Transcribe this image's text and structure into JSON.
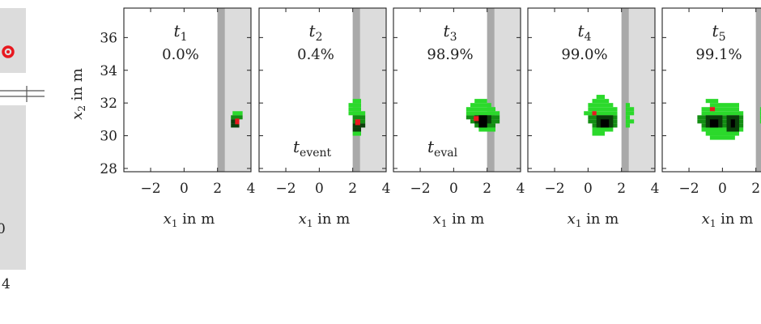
{
  "colors": {
    "occupied": "#2bd92b",
    "occupied_dark": "#0b3f0b",
    "occupied_black": "#000000",
    "ego": "#e8181f",
    "shade": "#dcdcdc",
    "shade_edge": "#a9a9a9",
    "left_marker": "#e8181f"
  },
  "left_fragment": {
    "tick_label_bottom": "4",
    "tick_label_side": "0"
  },
  "chart_data": [
    {
      "type": "heatmap",
      "time_label": "t",
      "time_sub": "1",
      "probability": "0.0%",
      "annotation": "",
      "annotation_sub": "",
      "xlim": [
        -3.6,
        4.0
      ],
      "ylim": [
        27.8,
        37.8
      ],
      "xticks": [
        "−2",
        "0",
        "2",
        "4"
      ],
      "xtick_values": [
        -2,
        0,
        2,
        4
      ],
      "yticks": [
        "28",
        "30",
        "32",
        "34",
        "36"
      ],
      "ytick_values": [
        28,
        30,
        32,
        34,
        36
      ],
      "xlabel": "x",
      "xlabel_sub": "1",
      "xlabel_unit": " in m",
      "ylabel": "x",
      "ylabel_sub": "2",
      "ylabel_unit": " in m",
      "shade_x": [
        2.0,
        4.0
      ],
      "grid_cell": 0.25,
      "occupancy": [
        {
          "x": 2.9,
          "y": 31.25,
          "w": 0.6,
          "h": 0.25,
          "level": 0
        },
        {
          "x": 2.8,
          "y": 31.0,
          "w": 0.7,
          "h": 0.25,
          "level": 1
        },
        {
          "x": 2.8,
          "y": 30.75,
          "w": 0.5,
          "h": 0.25,
          "level": 2
        },
        {
          "x": 2.8,
          "y": 30.5,
          "w": 0.5,
          "h": 0.25,
          "level": 2
        }
      ],
      "ego": [
        {
          "x": 3.05,
          "y": 30.7,
          "w": 0.25,
          "h": 0.35
        }
      ]
    },
    {
      "type": "heatmap",
      "time_label": "t",
      "time_sub": "2",
      "probability": "0.4%",
      "annotation": "t",
      "annotation_sub": "event",
      "xlim": [
        -3.6,
        4.0
      ],
      "ylim": [
        27.8,
        37.8
      ],
      "xticks": [
        "−2",
        "0",
        "2",
        "4"
      ],
      "xtick_values": [
        -2,
        0,
        2,
        4
      ],
      "yticks": [],
      "ytick_values": [
        28,
        30,
        32,
        34,
        36
      ],
      "xlabel": "x",
      "xlabel_sub": "1",
      "xlabel_unit": " in m",
      "shade_x": [
        2.0,
        4.0
      ],
      "grid_cell": 0.25,
      "occupancy": [
        {
          "x": 2.0,
          "y": 32.0,
          "w": 0.5,
          "h": 0.25,
          "level": 0
        },
        {
          "x": 1.75,
          "y": 31.75,
          "w": 0.75,
          "h": 0.25,
          "level": 0
        },
        {
          "x": 1.75,
          "y": 31.5,
          "w": 0.75,
          "h": 0.25,
          "level": 0
        },
        {
          "x": 1.75,
          "y": 31.25,
          "w": 1.0,
          "h": 0.25,
          "level": 0
        },
        {
          "x": 2.0,
          "y": 31.0,
          "w": 0.75,
          "h": 0.25,
          "level": 1
        },
        {
          "x": 2.0,
          "y": 30.75,
          "w": 0.75,
          "h": 0.25,
          "level": 1
        },
        {
          "x": 2.0,
          "y": 30.5,
          "w": 0.75,
          "h": 0.25,
          "level": 2
        },
        {
          "x": 2.0,
          "y": 30.25,
          "w": 0.5,
          "h": 0.25,
          "level": 2
        },
        {
          "x": 2.0,
          "y": 30.0,
          "w": 0.5,
          "h": 0.25,
          "level": 0
        }
      ],
      "ego": [
        {
          "x": 2.15,
          "y": 30.65,
          "w": 0.3,
          "h": 0.35
        }
      ]
    },
    {
      "type": "heatmap",
      "time_label": "t",
      "time_sub": "3",
      "probability": "98.9%",
      "annotation": "t",
      "annotation_sub": "eval",
      "xlim": [
        -3.6,
        4.0
      ],
      "ylim": [
        27.8,
        37.8
      ],
      "xticks": [
        "−2",
        "0",
        "2",
        "4"
      ],
      "xtick_values": [
        -2,
        0,
        2,
        4
      ],
      "yticks": [],
      "ytick_values": [
        28,
        30,
        32,
        34,
        36
      ],
      "xlabel": "x",
      "xlabel_sub": "1",
      "xlabel_unit": " in m",
      "shade_x": [
        2.0,
        4.0
      ],
      "grid_cell": 0.25,
      "occupancy": [
        {
          "x": 1.25,
          "y": 32.0,
          "w": 0.75,
          "h": 0.25,
          "level": 0
        },
        {
          "x": 1.0,
          "y": 31.75,
          "w": 1.25,
          "h": 0.25,
          "level": 0
        },
        {
          "x": 0.75,
          "y": 31.5,
          "w": 1.75,
          "h": 0.25,
          "level": 0
        },
        {
          "x": 0.75,
          "y": 31.25,
          "w": 2.0,
          "h": 0.25,
          "level": 0
        },
        {
          "x": 0.75,
          "y": 31.0,
          "w": 2.0,
          "h": 0.25,
          "level": 1
        },
        {
          "x": 1.0,
          "y": 30.75,
          "w": 1.75,
          "h": 0.25,
          "level": 1
        },
        {
          "x": 1.25,
          "y": 30.5,
          "w": 1.25,
          "h": 0.25,
          "level": 1
        },
        {
          "x": 1.5,
          "y": 30.25,
          "w": 1.0,
          "h": 0.25,
          "level": 0
        },
        {
          "x": 1.25,
          "y": 30.75,
          "w": 1.0,
          "h": 0.5,
          "level": 2
        },
        {
          "x": 1.5,
          "y": 30.5,
          "w": 0.5,
          "h": 0.75,
          "level": 3
        }
      ],
      "ego": [
        {
          "x": 1.2,
          "y": 30.9,
          "w": 0.3,
          "h": 0.3
        }
      ]
    },
    {
      "type": "heatmap",
      "time_label": "t",
      "time_sub": "4",
      "probability": "99.0%",
      "annotation": "",
      "annotation_sub": "",
      "xlim": [
        -3.6,
        4.0
      ],
      "ylim": [
        27.8,
        37.8
      ],
      "xticks": [
        "−2",
        "0",
        "2",
        "4"
      ],
      "xtick_values": [
        -2,
        0,
        2,
        4
      ],
      "yticks": [],
      "ytick_values": [
        28,
        30,
        32,
        34,
        36
      ],
      "xlabel": "x",
      "xlabel_sub": "1",
      "xlabel_unit": " in m",
      "shade_x": [
        2.0,
        4.0
      ],
      "grid_cell": 0.25,
      "occupancy": [
        {
          "x": 0.5,
          "y": 32.25,
          "w": 0.5,
          "h": 0.25,
          "level": 0
        },
        {
          "x": 0.25,
          "y": 32.0,
          "w": 1.0,
          "h": 0.25,
          "level": 0
        },
        {
          "x": 0.0,
          "y": 31.75,
          "w": 1.5,
          "h": 0.25,
          "level": 0
        },
        {
          "x": 0.0,
          "y": 31.5,
          "w": 1.75,
          "h": 0.25,
          "level": 0
        },
        {
          "x": -0.25,
          "y": 31.25,
          "w": 2.0,
          "h": 0.25,
          "level": 0
        },
        {
          "x": 0.0,
          "y": 31.0,
          "w": 1.75,
          "h": 0.25,
          "level": 1
        },
        {
          "x": 0.0,
          "y": 30.75,
          "w": 1.75,
          "h": 0.25,
          "level": 1
        },
        {
          "x": 0.25,
          "y": 30.5,
          "w": 1.5,
          "h": 0.25,
          "level": 1
        },
        {
          "x": 0.25,
          "y": 30.25,
          "w": 1.25,
          "h": 0.25,
          "level": 0
        },
        {
          "x": 0.25,
          "y": 30.0,
          "w": 0.75,
          "h": 0.25,
          "level": 0
        },
        {
          "x": 0.5,
          "y": 30.5,
          "w": 1.0,
          "h": 0.75,
          "level": 2
        },
        {
          "x": 0.75,
          "y": 30.5,
          "w": 0.5,
          "h": 0.5,
          "level": 3
        },
        {
          "x": 2.25,
          "y": 31.75,
          "w": 0.25,
          "h": 0.25,
          "level": 0
        },
        {
          "x": 2.25,
          "y": 31.5,
          "w": 0.5,
          "h": 0.25,
          "level": 0
        },
        {
          "x": 2.25,
          "y": 31.25,
          "w": 0.5,
          "h": 0.25,
          "level": 0
        },
        {
          "x": 2.25,
          "y": 31.0,
          "w": 0.25,
          "h": 0.25,
          "level": 0
        },
        {
          "x": 2.25,
          "y": 30.75,
          "w": 0.5,
          "h": 0.25,
          "level": 0
        },
        {
          "x": 2.25,
          "y": 30.5,
          "w": 0.25,
          "h": 0.25,
          "level": 0
        }
      ],
      "ego": [
        {
          "x": 0.25,
          "y": 31.25,
          "w": 0.25,
          "h": 0.25
        }
      ]
    },
    {
      "type": "heatmap",
      "time_label": "t",
      "time_sub": "5",
      "probability": "99.1%",
      "annotation": "",
      "annotation_sub": "",
      "xlim": [
        -3.6,
        4.0
      ],
      "ylim": [
        27.8,
        37.8
      ],
      "xticks": [
        "−2",
        "0",
        "2"
      ],
      "xtick_values": [
        -2,
        0,
        2
      ],
      "yticks": [],
      "ytick_values": [
        28,
        30,
        32,
        34,
        36
      ],
      "xlabel": "x",
      "xlabel_sub": "1",
      "xlabel_unit": " in m",
      "shade_x": [
        2.0,
        4.0
      ],
      "grid_cell": 0.25,
      "occupancy": [
        {
          "x": -1.0,
          "y": 32.0,
          "w": 0.75,
          "h": 0.25,
          "level": 0
        },
        {
          "x": -0.75,
          "y": 31.75,
          "w": 1.75,
          "h": 0.25,
          "level": 0
        },
        {
          "x": -1.25,
          "y": 31.5,
          "w": 2.25,
          "h": 0.25,
          "level": 0
        },
        {
          "x": -1.25,
          "y": 31.25,
          "w": 2.5,
          "h": 0.25,
          "level": 0
        },
        {
          "x": -1.5,
          "y": 31.0,
          "w": 2.75,
          "h": 0.25,
          "level": 1
        },
        {
          "x": -1.5,
          "y": 30.75,
          "w": 2.75,
          "h": 0.25,
          "level": 1
        },
        {
          "x": -1.25,
          "y": 30.5,
          "w": 2.5,
          "h": 0.25,
          "level": 1
        },
        {
          "x": -1.25,
          "y": 30.25,
          "w": 2.5,
          "h": 0.25,
          "level": 0
        },
        {
          "x": -1.0,
          "y": 30.0,
          "w": 2.0,
          "h": 0.25,
          "level": 0
        },
        {
          "x": -0.75,
          "y": 29.75,
          "w": 1.5,
          "h": 0.25,
          "level": 0
        },
        {
          "x": -1.0,
          "y": 30.5,
          "w": 1.0,
          "h": 0.75,
          "level": 2
        },
        {
          "x": 0.25,
          "y": 30.25,
          "w": 0.75,
          "h": 1.0,
          "level": 2
        },
        {
          "x": -0.75,
          "y": 30.5,
          "w": 0.5,
          "h": 0.5,
          "level": 3
        },
        {
          "x": 0.5,
          "y": 30.5,
          "w": 0.25,
          "h": 0.5,
          "level": 3
        },
        {
          "x": 2.25,
          "y": 31.5,
          "w": 0.5,
          "h": 0.25,
          "level": 0
        },
        {
          "x": 2.25,
          "y": 31.25,
          "w": 0.5,
          "h": 0.25,
          "level": 0
        },
        {
          "x": 2.25,
          "y": 31.0,
          "w": 0.5,
          "h": 0.25,
          "level": 0
        },
        {
          "x": 2.25,
          "y": 30.75,
          "w": 0.5,
          "h": 0.25,
          "level": 0
        }
      ],
      "ego": [
        {
          "x": -0.75,
          "y": 31.5,
          "w": 0.3,
          "h": 0.25
        }
      ]
    }
  ]
}
